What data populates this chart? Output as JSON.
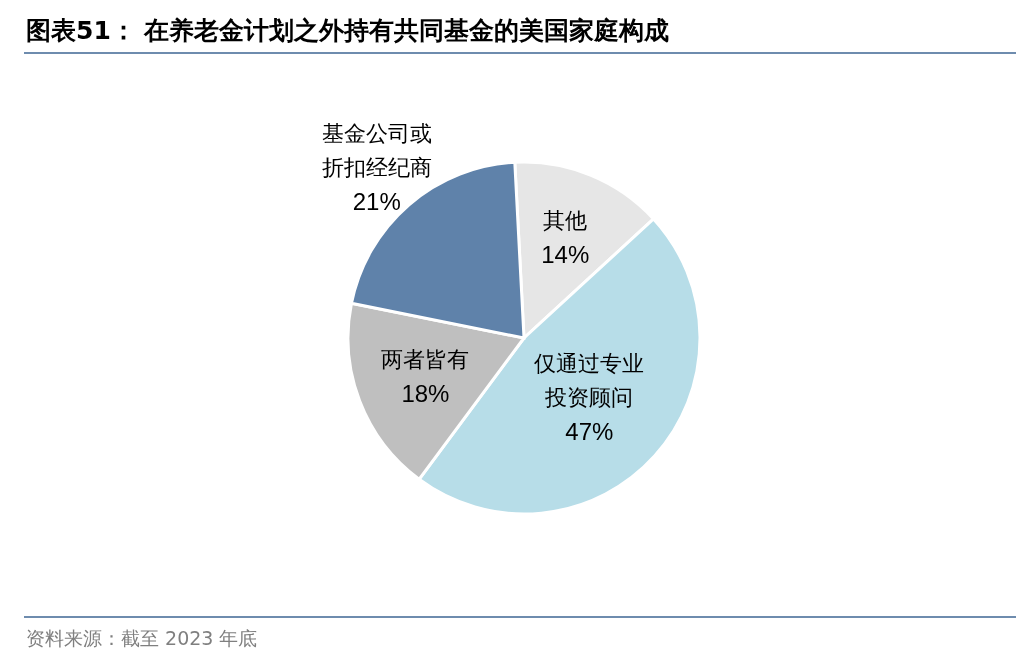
{
  "chart_data": {
    "type": "pie",
    "title": "图表51：  在养老金计划之外持有共同基金的美国家庭构成",
    "categories": [
      "其他",
      "仅通过专业投资顾问",
      "两者皆有",
      "基金公司或折扣经纪商"
    ],
    "values": [
      14,
      47,
      18,
      21
    ],
    "colors": [
      "#e6e6e6",
      "#b7dde8",
      "#bfbfbf",
      "#5f82aa"
    ],
    "value_labels": [
      "14%",
      "47%",
      "18%",
      "21%"
    ],
    "annotations": [
      "资料来源：截至 2023 年底"
    ]
  }
}
